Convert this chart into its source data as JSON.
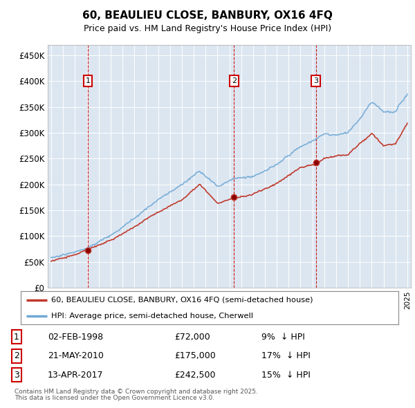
{
  "title": "60, BEAULIEU CLOSE, BANBURY, OX16 4FQ",
  "subtitle": "Price paid vs. HM Land Registry's House Price Index (HPI)",
  "ylim": [
    0,
    470000
  ],
  "yticks": [
    0,
    50000,
    100000,
    150000,
    200000,
    250000,
    300000,
    350000,
    400000,
    450000
  ],
  "ytick_labels": [
    "£0",
    "£50K",
    "£100K",
    "£150K",
    "£200K",
    "£250K",
    "£300K",
    "£350K",
    "£400K",
    "£450K"
  ],
  "xlim_start": 1994.7,
  "xlim_end": 2025.3,
  "plot_bg_color": "#dce6f1",
  "hpi_color": "#6fa8d4",
  "price_color": "#c0392b",
  "vline_color": "#cc0000",
  "annotation_box_color": "#cc0000",
  "grid_color": "#ffffff",
  "legend_label_property": "60, BEAULIEU CLOSE, BANBURY, OX16 4FQ (semi-detached house)",
  "legend_label_hpi": "HPI: Average price, semi-detached house, Cherwell",
  "sales": [
    {
      "num": 1,
      "date": "02-FEB-1998",
      "year": 1998.09,
      "price": 72000,
      "pct": "9%",
      "direction": "↓"
    },
    {
      "num": 2,
      "date": "21-MAY-2010",
      "year": 2010.39,
      "price": 175000,
      "pct": "17%",
      "direction": "↓"
    },
    {
      "num": 3,
      "date": "13-APR-2017",
      "year": 2017.29,
      "price": 242500,
      "pct": "15%",
      "direction": "↓"
    }
  ],
  "footer_line1": "Contains HM Land Registry data © Crown copyright and database right 2025.",
  "footer_line2": "This data is licensed under the Open Government Licence v3.0."
}
